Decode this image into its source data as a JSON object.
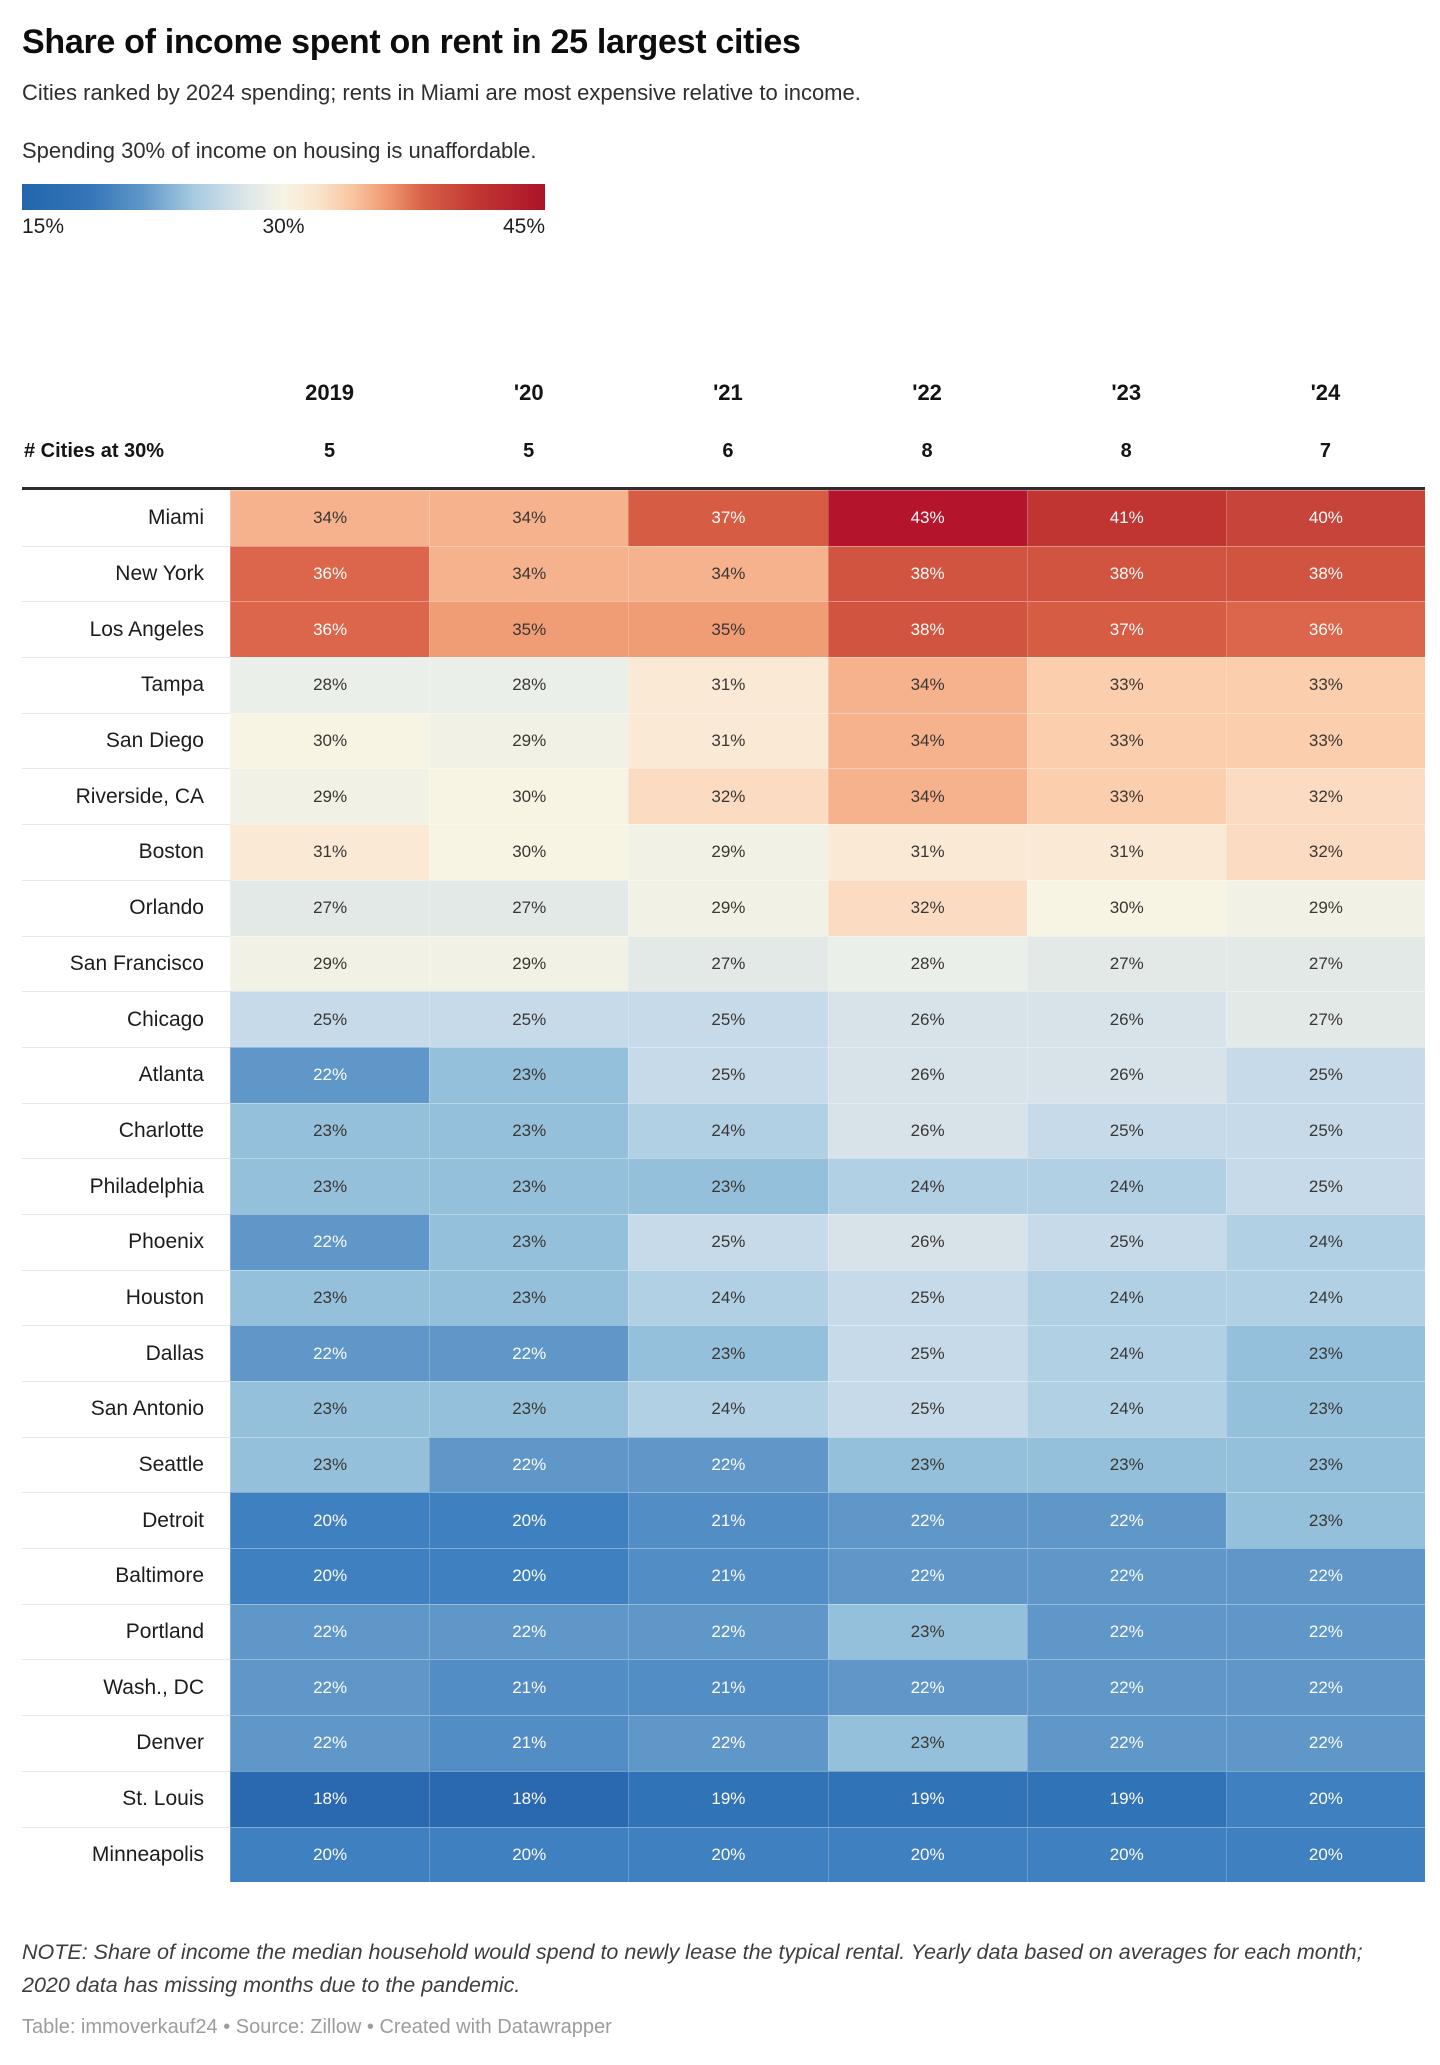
{
  "title": "Share of income spent on rent in 25 largest cities",
  "subtitle": "Cities ranked by 2024 spending; rents in Miami are most expensive relative to income.",
  "intro": "Spending 30% of income on housing is unaffordable.",
  "legend": {
    "min_label": "15%",
    "mid_label": "30%",
    "max_label": "45%",
    "min_color": "#2166ac",
    "mid_color": "#f8f4e4",
    "max_color": "#aa1127",
    "scale_stops": [
      [
        15,
        "#2166ac"
      ],
      [
        18,
        "#2a68b0"
      ],
      [
        19,
        "#3173b7"
      ],
      [
        20,
        "#3f80c0"
      ],
      [
        21,
        "#528dc6"
      ],
      [
        22,
        "#5f97c9"
      ],
      [
        22.6,
        "#7fb0d5"
      ],
      [
        23,
        "#95c0dc"
      ],
      [
        24,
        "#b2d0e4"
      ],
      [
        25,
        "#c6daea"
      ],
      [
        26,
        "#d8e3e9"
      ],
      [
        27,
        "#e2e9e6"
      ],
      [
        28,
        "#eaefe9"
      ],
      [
        29,
        "#f1f2e5"
      ],
      [
        30,
        "#f8f4e4"
      ],
      [
        31,
        "#f9e9d5"
      ],
      [
        32,
        "#fbdcc3"
      ],
      [
        33,
        "#fbcfae"
      ],
      [
        34,
        "#f6b28d"
      ],
      [
        35,
        "#f09c75"
      ],
      [
        35.6,
        "#e37a58"
      ],
      [
        36,
        "#db664b"
      ],
      [
        37,
        "#d65d44"
      ],
      [
        38,
        "#d15440"
      ],
      [
        40,
        "#c7443a"
      ],
      [
        41,
        "#c03431"
      ],
      [
        43,
        "#b5152c"
      ],
      [
        45,
        "#aa1127"
      ]
    ],
    "legend_gradient_stops": [
      [
        0,
        "#2166ac"
      ],
      [
        13,
        "#3575b8"
      ],
      [
        23,
        "#5f97c9"
      ],
      [
        33,
        "#a8cbe1"
      ],
      [
        43,
        "#dde6e8"
      ],
      [
        50,
        "#f8f4e4"
      ],
      [
        57,
        "#f9e3cb"
      ],
      [
        63,
        "#f8c6a1"
      ],
      [
        70,
        "#ef9770"
      ],
      [
        77,
        "#d65f45"
      ],
      [
        87,
        "#c13732"
      ],
      [
        100,
        "#ac1228"
      ]
    ],
    "white_text_low_max": 22,
    "white_text_high_min": 36,
    "dark_text_color": "#3a3633",
    "white_text_color": "#fdfcfb"
  },
  "table": {
    "year_headers": [
      "2019",
      "'20",
      "'21",
      "'22",
      "'23",
      "'24"
    ],
    "counts_label": "# Cities at 30%",
    "counts": [
      "5",
      "5",
      "6",
      "8",
      "8",
      "7"
    ],
    "rows": [
      {
        "city": "Miami",
        "values": [
          34,
          34,
          37,
          43,
          41,
          40
        ]
      },
      {
        "city": "New York",
        "values": [
          36,
          34,
          34,
          38,
          38,
          38
        ]
      },
      {
        "city": "Los Angeles",
        "values": [
          36,
          35,
          35,
          38,
          37,
          36
        ]
      },
      {
        "city": "Tampa",
        "values": [
          28,
          28,
          31,
          34,
          33,
          33
        ]
      },
      {
        "city": "San Diego",
        "values": [
          30,
          29,
          31,
          34,
          33,
          33
        ]
      },
      {
        "city": "Riverside, CA",
        "values": [
          29,
          30,
          32,
          34,
          33,
          32
        ]
      },
      {
        "city": "Boston",
        "values": [
          31,
          30,
          29,
          31,
          31,
          32
        ]
      },
      {
        "city": "Orlando",
        "values": [
          27,
          27,
          29,
          32,
          30,
          29
        ]
      },
      {
        "city": "San Francisco",
        "values": [
          29,
          29,
          27,
          28,
          27,
          27
        ]
      },
      {
        "city": "Chicago",
        "values": [
          25,
          25,
          25,
          26,
          26,
          27
        ]
      },
      {
        "city": "Atlanta",
        "values": [
          22,
          23,
          25,
          26,
          26,
          25
        ]
      },
      {
        "city": "Charlotte",
        "values": [
          23,
          23,
          24,
          26,
          25,
          25
        ]
      },
      {
        "city": "Philadelphia",
        "values": [
          23,
          23,
          23,
          24,
          24,
          25
        ]
      },
      {
        "city": "Phoenix",
        "values": [
          22,
          23,
          25,
          26,
          25,
          24
        ]
      },
      {
        "city": "Houston",
        "values": [
          23,
          23,
          24,
          25,
          24,
          24
        ]
      },
      {
        "city": "Dallas",
        "values": [
          22,
          22,
          23,
          25,
          24,
          23
        ]
      },
      {
        "city": "San Antonio",
        "values": [
          23,
          23,
          24,
          25,
          24,
          23
        ]
      },
      {
        "city": "Seattle",
        "values": [
          23,
          22,
          22,
          23,
          23,
          23
        ]
      },
      {
        "city": "Detroit",
        "values": [
          20,
          20,
          21,
          22,
          22,
          23
        ]
      },
      {
        "city": "Baltimore",
        "values": [
          20,
          20,
          21,
          22,
          22,
          22
        ]
      },
      {
        "city": "Portland",
        "values": [
          22,
          22,
          22,
          23,
          22,
          22
        ]
      },
      {
        "city": "Wash., DC",
        "values": [
          22,
          21,
          21,
          22,
          22,
          22
        ]
      },
      {
        "city": "Denver",
        "values": [
          22,
          21,
          22,
          23,
          22,
          22
        ]
      },
      {
        "city": "St. Louis",
        "values": [
          18,
          18,
          19,
          19,
          19,
          20
        ]
      },
      {
        "city": "Minneapolis",
        "values": [
          20,
          20,
          20,
          20,
          20,
          20
        ]
      }
    ],
    "value_suffix": "%"
  },
  "note": "NOTE: Share of income the median household would spend to newly lease the typical rental. Yearly data based on averages for each month; 2020 data has missing months due to the pandemic.",
  "attribution": "Table: immoverkauf24 • Source: Zillow • Created with Datawrapper",
  "chart_data": {
    "type": "heatmap",
    "title": "Share of income spent on rent in 25 largest cities",
    "subtitle": "Cities ranked by 2024 spending; rents in Miami are most expensive relative to income.",
    "annotation": "Spending 30% of income on housing is unaffordable.",
    "columns": [
      "2019",
      "'20",
      "'21",
      "'22",
      "'23",
      "'24"
    ],
    "cities_at_30_pct": [
      5,
      5,
      6,
      8,
      8,
      7
    ],
    "rows": [
      "Miami",
      "New York",
      "Los Angeles",
      "Tampa",
      "San Diego",
      "Riverside, CA",
      "Boston",
      "Orlando",
      "San Francisco",
      "Chicago",
      "Atlanta",
      "Charlotte",
      "Philadelphia",
      "Phoenix",
      "Houston",
      "Dallas",
      "San Antonio",
      "Seattle",
      "Detroit",
      "Baltimore",
      "Portland",
      "Wash., DC",
      "Denver",
      "St. Louis",
      "Minneapolis"
    ],
    "values": [
      [
        34,
        34,
        37,
        43,
        41,
        40
      ],
      [
        36,
        34,
        34,
        38,
        38,
        38
      ],
      [
        36,
        35,
        35,
        38,
        37,
        36
      ],
      [
        28,
        28,
        31,
        34,
        33,
        33
      ],
      [
        30,
        29,
        31,
        34,
        33,
        33
      ],
      [
        29,
        30,
        32,
        34,
        33,
        32
      ],
      [
        31,
        30,
        29,
        31,
        31,
        32
      ],
      [
        27,
        27,
        29,
        32,
        30,
        29
      ],
      [
        29,
        29,
        27,
        28,
        27,
        27
      ],
      [
        25,
        25,
        25,
        26,
        26,
        27
      ],
      [
        22,
        23,
        25,
        26,
        26,
        25
      ],
      [
        23,
        23,
        24,
        26,
        25,
        25
      ],
      [
        23,
        23,
        23,
        24,
        24,
        25
      ],
      [
        22,
        23,
        25,
        26,
        25,
        24
      ],
      [
        23,
        23,
        24,
        25,
        24,
        24
      ],
      [
        22,
        22,
        23,
        25,
        24,
        23
      ],
      [
        23,
        23,
        24,
        25,
        24,
        23
      ],
      [
        23,
        22,
        22,
        23,
        23,
        23
      ],
      [
        20,
        20,
        21,
        22,
        22,
        23
      ],
      [
        20,
        20,
        21,
        22,
        22,
        22
      ],
      [
        22,
        22,
        22,
        23,
        22,
        22
      ],
      [
        22,
        21,
        21,
        22,
        22,
        22
      ],
      [
        22,
        21,
        22,
        23,
        22,
        22
      ],
      [
        18,
        18,
        19,
        19,
        19,
        20
      ],
      [
        20,
        20,
        20,
        20,
        20,
        20
      ]
    ],
    "unit": "%",
    "color_scale": {
      "min": 15,
      "mid": 30,
      "max": 45,
      "min_color": "#2166ac",
      "mid_color": "#f8f4e4",
      "max_color": "#aa1127"
    },
    "legend_position": "top-left",
    "grid": false
  }
}
